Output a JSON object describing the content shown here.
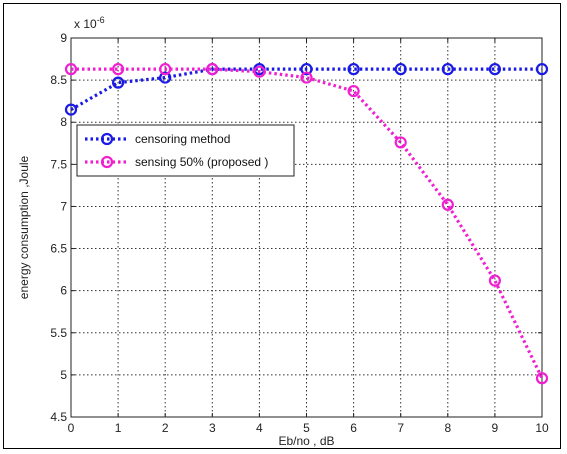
{
  "chart_data": {
    "type": "line",
    "title": "",
    "xlabel": "Eb/no , dB",
    "ylabel": "energy consumption ,Joule",
    "y_multiplier_label": "x 10",
    "y_multiplier_exponent": "-6",
    "xlim": [
      0,
      10
    ],
    "ylim": [
      4.5,
      9
    ],
    "grid": true,
    "grid_style": "dotted",
    "x": [
      0,
      1,
      2,
      3,
      4,
      5,
      6,
      7,
      8,
      9,
      10
    ],
    "x_ticks": [
      "0",
      "1",
      "2",
      "3",
      "4",
      "5",
      "6",
      "7",
      "8",
      "9",
      "10"
    ],
    "y_ticks": [
      "4.5",
      "5",
      "5.5",
      "6",
      "6.5",
      "7",
      "7.5",
      "8",
      "8.5",
      "9"
    ],
    "legend_position": "center-left",
    "series": [
      {
        "name": "censoring method",
        "color": "#1a1ae6",
        "marker": "circle",
        "line_style": "dotted",
        "values": [
          8.15,
          8.47,
          8.53,
          8.63,
          8.63,
          8.63,
          8.63,
          8.63,
          8.63,
          8.63,
          8.63
        ]
      },
      {
        "name": "sensing 50% (proposed   )",
        "color": "#f020d0",
        "marker": "circle",
        "line_style": "dotted",
        "values": [
          8.63,
          8.63,
          8.63,
          8.63,
          8.6,
          8.53,
          8.37,
          7.76,
          7.02,
          6.12,
          4.96
        ]
      }
    ]
  }
}
